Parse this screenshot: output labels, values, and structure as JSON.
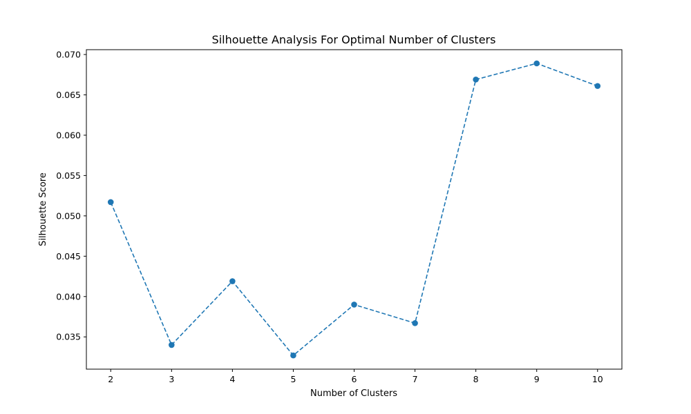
{
  "chart_data": {
    "type": "line",
    "title": "Silhouette Analysis For Optimal Number of Clusters",
    "xlabel": "Number of Clusters",
    "ylabel": "Silhouette Score",
    "x": [
      2,
      3,
      4,
      5,
      6,
      7,
      8,
      9,
      10
    ],
    "series": [
      {
        "values": [
          0.0517,
          0.034,
          0.0419,
          0.0327,
          0.039,
          0.0367,
          0.0669,
          0.0689,
          0.0661
        ],
        "color": "#1f77b4",
        "line_style": "dashed",
        "marker": "circle"
      }
    ],
    "xlim": [
      1.6,
      10.4
    ],
    "ylim": [
      0.031,
      0.0706
    ],
    "xticks": [
      2,
      3,
      4,
      5,
      6,
      7,
      8,
      9,
      10
    ],
    "xtick_labels": [
      "2",
      "3",
      "4",
      "5",
      "6",
      "7",
      "8",
      "9",
      "10"
    ],
    "yticks": [
      0.035,
      0.04,
      0.045,
      0.05,
      0.055,
      0.06,
      0.065,
      0.07
    ],
    "ytick_labels": [
      "0.035",
      "0.040",
      "0.045",
      "0.050",
      "0.055",
      "0.060",
      "0.065",
      "0.070"
    ],
    "grid": false,
    "legend": false
  }
}
